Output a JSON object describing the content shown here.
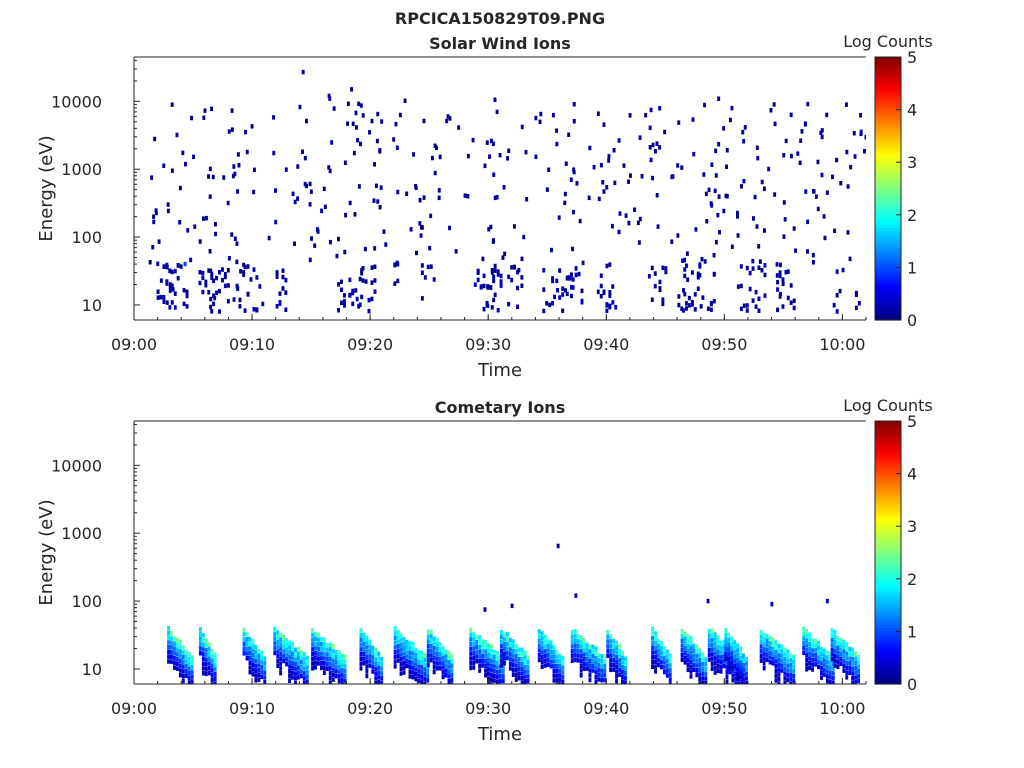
{
  "figure_title": "RPCICA150829T09.PNG",
  "chart_data": [
    {
      "type": "heatmap",
      "title": "Solar Wind Ions",
      "xlabel": "Time",
      "ylabel": "Energy (eV)",
      "yscale": "log",
      "ylim": [
        6,
        45000
      ],
      "xlim": [
        "09:00",
        "10:02"
      ],
      "x_tick_labels": [
        "09:00",
        "09:10",
        "09:20",
        "09:30",
        "09:40",
        "09:50",
        "10:00"
      ],
      "y_tick_labels": [
        "10",
        "100",
        "1000",
        "10000"
      ],
      "colorbar": {
        "label": "Log Counts",
        "range": [
          0,
          5
        ],
        "tick_labels": [
          "0",
          "1",
          "2",
          "3",
          "4",
          "5"
        ],
        "colormap": "jet"
      },
      "grid": false,
      "data_time_range_min": [
        1.2,
        62.0
      ],
      "sparse_points_logcounts": 0.0,
      "low_energy_band_eV": [
        8,
        40
      ],
      "low_energy_band_logcounts": [
        0,
        1
      ],
      "sample_points": [
        {
          "t_min": 14.2,
          "E_eV": 27000,
          "c": 0.1
        },
        {
          "t_min": 18.3,
          "E_eV": 15000,
          "c": 0.1
        },
        {
          "t_min": 16.4,
          "E_eV": 12000,
          "c": 0.1
        },
        {
          "t_min": 4.2,
          "E_eV": 40,
          "c": 1.0
        },
        {
          "t_min": 20.5,
          "E_eV": 5,
          "c": 0.2
        },
        {
          "t_min": 54.1,
          "E_eV": 9000,
          "c": 0.1
        }
      ]
    },
    {
      "type": "heatmap",
      "title": "Cometary Ions",
      "xlabel": "Time",
      "ylabel": "Energy (eV)",
      "yscale": "log",
      "ylim": [
        6,
        45000
      ],
      "xlim": [
        "09:00",
        "10:02"
      ],
      "x_tick_labels": [
        "09:00",
        "09:10",
        "09:20",
        "09:30",
        "09:40",
        "09:50",
        "10:00"
      ],
      "y_tick_labels": [
        "10",
        "100",
        "1000",
        "10000"
      ],
      "colorbar": {
        "label": "Log Counts",
        "range": [
          0,
          5
        ],
        "tick_labels": [
          "0",
          "1",
          "2",
          "3",
          "4",
          "5"
        ],
        "colormap": "jet"
      },
      "grid": false,
      "burst_start_min": [
        2.8,
        5.5,
        9.2,
        11.8,
        15.0,
        19.1,
        22.0,
        24.8,
        28.4,
        31.0,
        34.2,
        37.0,
        40.0,
        43.8,
        46.3,
        48.6,
        50.0,
        53.0,
        56.6,
        59.0
      ],
      "band_eV": [
        8,
        60
      ],
      "peak_logcounts": 2.3,
      "isolated_points": [
        {
          "t_min": 35.8,
          "E_eV": 650,
          "c": 0.2
        },
        {
          "t_min": 37.3,
          "E_eV": 120,
          "c": 0.3
        },
        {
          "t_min": 48.5,
          "E_eV": 100,
          "c": 0.3
        },
        {
          "t_min": 58.6,
          "E_eV": 100,
          "c": 0.3
        },
        {
          "t_min": 53.9,
          "E_eV": 90,
          "c": 0.3
        },
        {
          "t_min": 29.6,
          "E_eV": 75,
          "c": 0.3
        },
        {
          "t_min": 31.9,
          "E_eV": 85,
          "c": 0.3
        }
      ]
    }
  ]
}
